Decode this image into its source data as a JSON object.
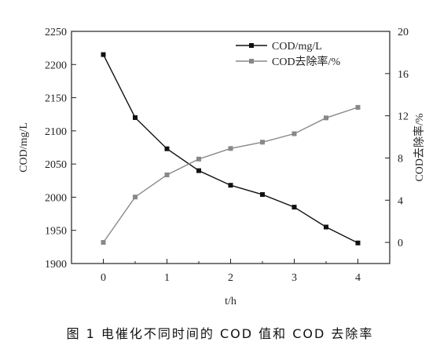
{
  "chart_data": {
    "type": "line",
    "xlabel": "t/h",
    "ylabel": "COD/mg/L",
    "y2label": "COD去除率/%",
    "xlim": [
      -0.5,
      4.5
    ],
    "ylim": [
      1900,
      2250
    ],
    "y2lim": [
      -2,
      20
    ],
    "xticks": [
      0,
      1,
      2,
      3,
      4
    ],
    "yticks": [
      1900,
      1950,
      2000,
      2050,
      2100,
      2150,
      2200,
      2250
    ],
    "y2ticks": [
      0,
      4,
      8,
      12,
      16,
      20
    ],
    "x": [
      0,
      0.5,
      1,
      1.5,
      2,
      2.5,
      3,
      3.5,
      4
    ],
    "series": [
      {
        "name": "COD/mg/L",
        "axis": "left",
        "color": "#111111",
        "values": [
          2215,
          2120,
          2073,
          2040,
          2018,
          2004,
          1985,
          1955,
          1931
        ]
      },
      {
        "name": "COD去除率/%",
        "axis": "right",
        "color": "#888888",
        "values": [
          0,
          4.3,
          6.4,
          7.9,
          8.9,
          9.5,
          10.3,
          11.8,
          12.8
        ]
      }
    ],
    "legend_position": "top-right",
    "grid": false
  },
  "caption": "图 1   电催化不同时间的 COD 值和 COD 去除率"
}
